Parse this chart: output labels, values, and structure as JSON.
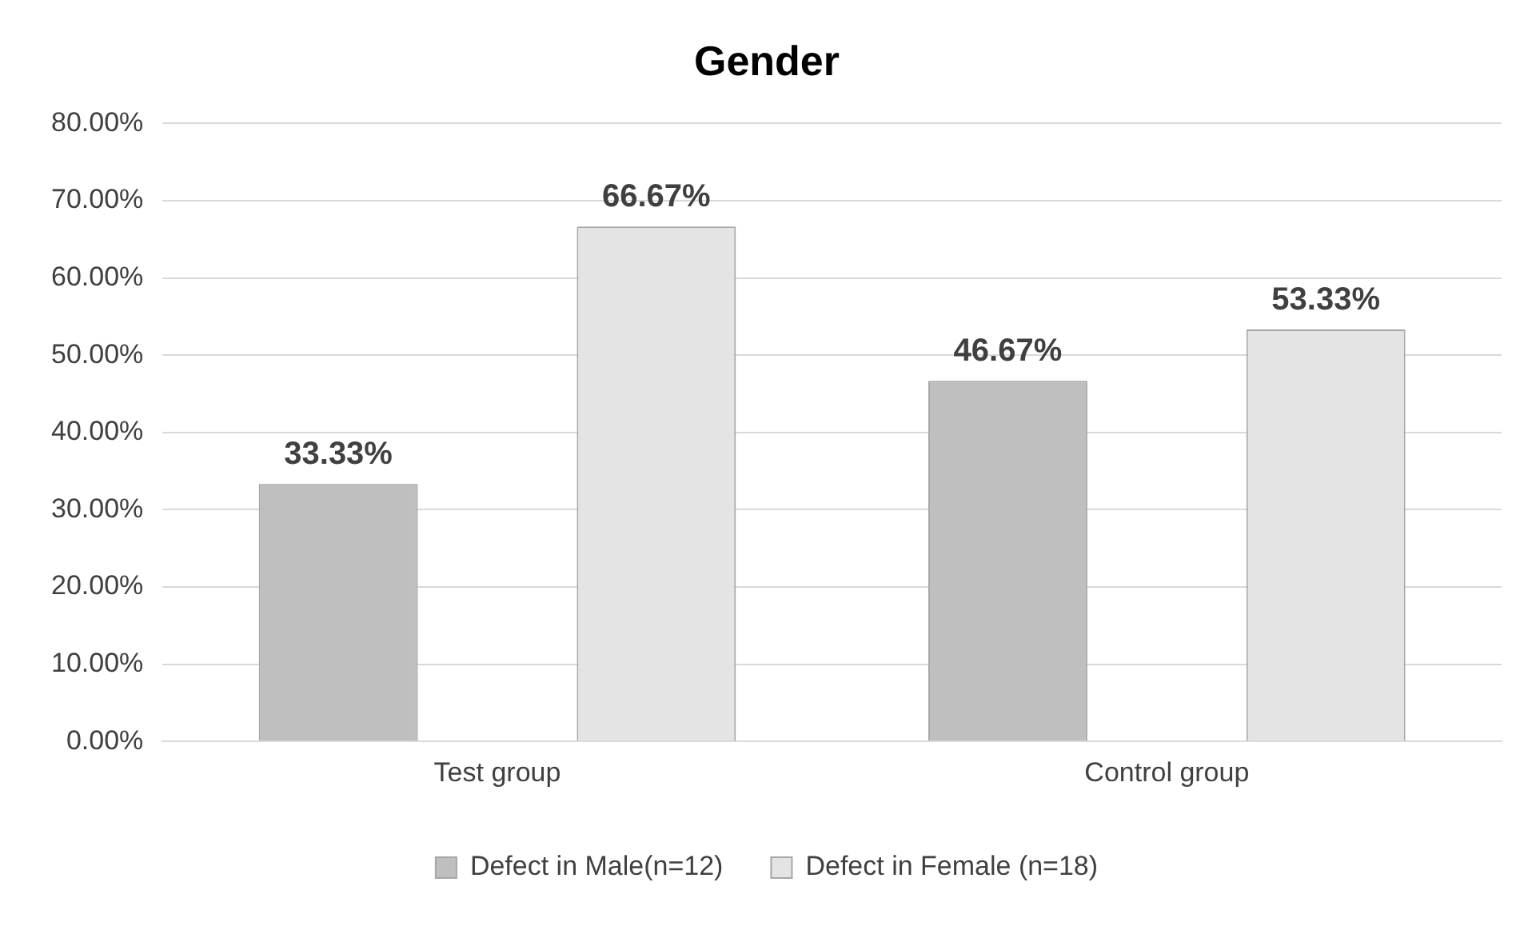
{
  "chart_data": {
    "type": "bar",
    "title": "Gender",
    "categories": [
      "Test group",
      "Control group"
    ],
    "series": [
      {
        "name": "Defect in Male(n=12)",
        "color": "#bfbfbf",
        "values": [
          33.33,
          46.67
        ],
        "value_labels": [
          "33.33%",
          "46.67%"
        ]
      },
      {
        "name": "Defect in Female (n=18)",
        "color": "#e4e4e4",
        "values": [
          66.67,
          53.33
        ],
        "value_labels": [
          "66.67%",
          "53.33%"
        ]
      }
    ],
    "ylim": [
      0,
      80
    ],
    "yticks": [
      {
        "value": 0,
        "label": "0.00%"
      },
      {
        "value": 10,
        "label": "10.00%"
      },
      {
        "value": 20,
        "label": "20.00%"
      },
      {
        "value": 30,
        "label": "30.00%"
      },
      {
        "value": 40,
        "label": "40.00%"
      },
      {
        "value": 50,
        "label": "50.00%"
      },
      {
        "value": 60,
        "label": "60.00%"
      },
      {
        "value": 70,
        "label": "70.00%"
      },
      {
        "value": 80,
        "label": "80.00%"
      }
    ],
    "grid": "y",
    "legend": "bottom"
  }
}
